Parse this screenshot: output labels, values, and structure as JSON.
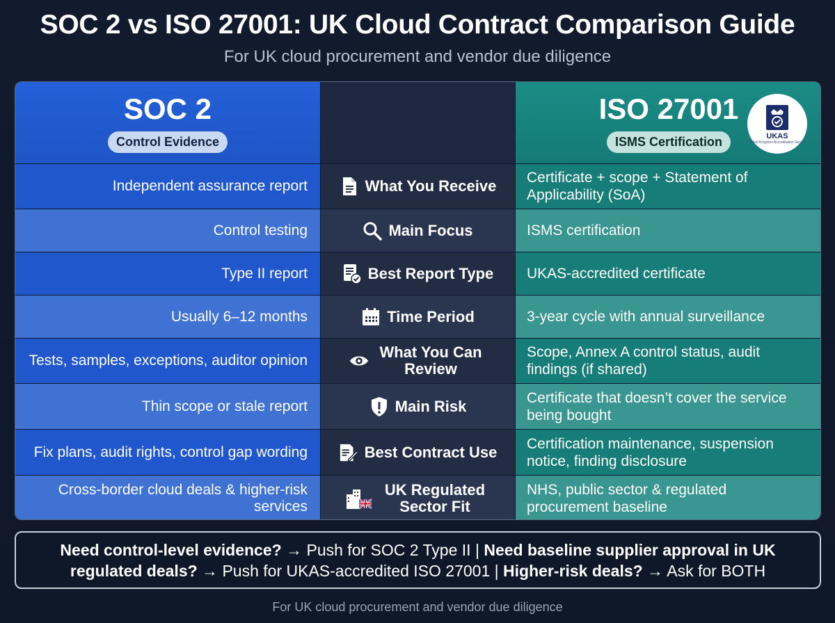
{
  "header": {
    "title": "SOC 2 vs ISO 27001: UK Cloud Contract Comparison Guide",
    "subtitle": "For UK cloud procurement and vendor due diligence"
  },
  "columns": {
    "soc": {
      "title": "SOC 2",
      "badge": "Control Evidence",
      "color": "#2157cc"
    },
    "iso": {
      "title": "ISO 27001",
      "badge": "ISMS Certification",
      "color": "#177d78",
      "logo_text": "UKAS",
      "logo_subtext": "United Kingdom Accreditation Service"
    }
  },
  "rows": [
    {
      "label": "What You Receive",
      "icon": "document-icon",
      "soc": "Independent assurance report",
      "iso": "Certificate + scope + Statement of Applicability (SoA)"
    },
    {
      "label": "Main Focus",
      "icon": "search-icon",
      "soc": "Control testing",
      "iso": "ISMS certification"
    },
    {
      "label": "Best Report Type",
      "icon": "report-check-icon",
      "soc": "Type II report",
      "iso": "UKAS-accredited certificate"
    },
    {
      "label": "Time Period",
      "icon": "calendar-icon",
      "soc": "Usually 6–12 months",
      "iso": "3-year cycle with annual surveillance"
    },
    {
      "label": "What You Can Review",
      "icon": "eye-icon",
      "soc": "Tests, samples, exceptions, auditor opinion",
      "iso": "Scope, Annex A control status, audit findings (if shared)"
    },
    {
      "label": "Main Risk",
      "icon": "shield-alert-icon",
      "soc": "Thin scope or stale report",
      "iso": "Certificate that doesn’t cover the service being bought"
    },
    {
      "label": "Best Contract Use",
      "icon": "contract-edit-icon",
      "soc": "Fix plans, audit rights, control gap wording",
      "iso": "Certification maintenance, suspension notice, finding disclosure"
    },
    {
      "label": "UK Regulated Sector Fit",
      "icon": "uk-building-icon",
      "soc": "Cross-border cloud deals & higher-risk services",
      "iso": "NHS, public sector & regulated procurement baseline"
    }
  ],
  "footer": {
    "q1": "Need control-level evidence?",
    "a1": " → Push for SOC 2 Type II | ",
    "q2": "Need baseline supplier approval in UK regulated deals?",
    "a2": " → Push for UKAS-accredited ISO 27001 | ",
    "q3": "Higher-risk deals?",
    "a3": " → Ask for BOTH",
    "note": "For UK cloud procurement and vendor due diligence"
  }
}
